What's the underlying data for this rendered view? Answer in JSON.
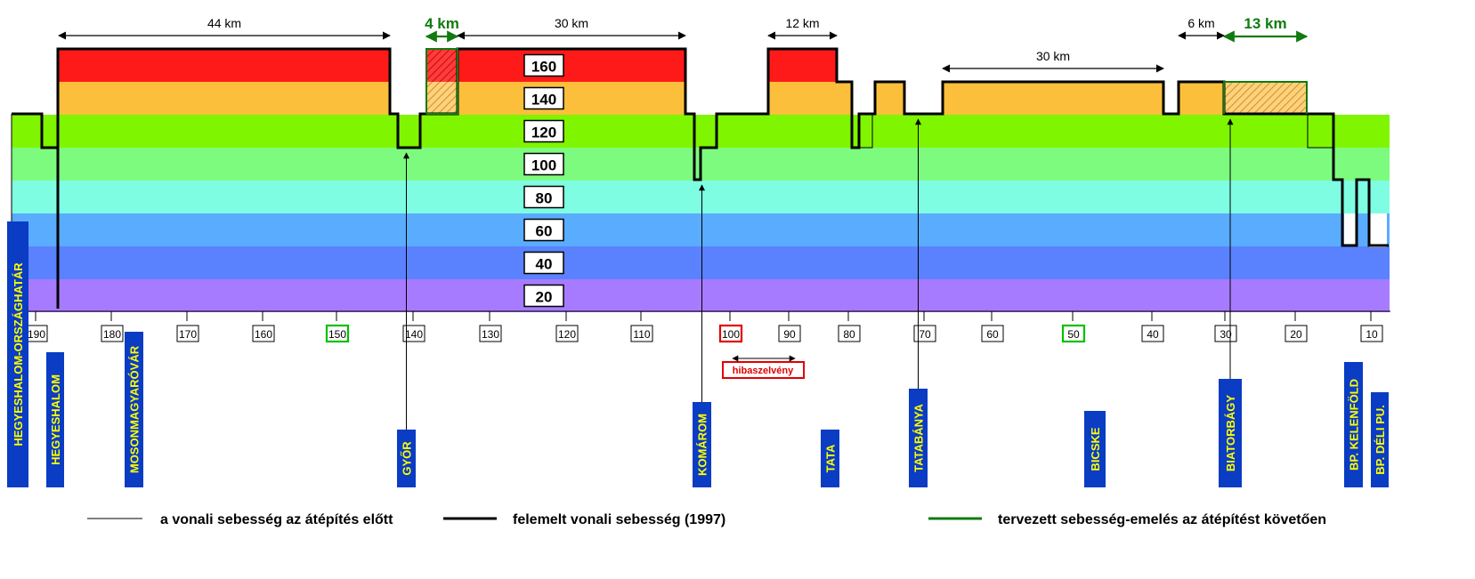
{
  "speed_bands": [
    {
      "label": "160",
      "color": "#ff1a1a"
    },
    {
      "label": "140",
      "color": "#fbbf3c"
    },
    {
      "label": "120",
      "color": "#7ff500"
    },
    {
      "label": "100",
      "color": "#7dfb7f"
    },
    {
      "label": "80",
      "color": "#7ffde3"
    },
    {
      "label": "60",
      "color": "#5aacff"
    },
    {
      "label": "40",
      "color": "#5a82ff"
    },
    {
      "label": "20",
      "color": "#a77bff"
    }
  ],
  "km_ticks": [
    "190",
    "180",
    "170",
    "160",
    "150",
    "140",
    "130",
    "120",
    "110",
    "100",
    "90",
    "80",
    "70",
    "60",
    "50",
    "40",
    "30",
    "20",
    "10"
  ],
  "tick_highlights": {
    "150": "green",
    "100": "red",
    "50": "green"
  },
  "error_note": "hibaszelvény",
  "dimensions": [
    {
      "label": "44 km",
      "planned": false
    },
    {
      "label": "4 km",
      "planned": true
    },
    {
      "label": "30 km",
      "planned": false
    },
    {
      "label": "12 km",
      "planned": false
    },
    {
      "label": "30 km",
      "planned": false
    },
    {
      "label": "6 km",
      "planned": false
    },
    {
      "label": "13 km",
      "planned": true
    }
  ],
  "stations": [
    {
      "name": "HEGYESHALOM-ORSZÁGHATÁR",
      "arrow": false
    },
    {
      "name": "HEGYESHALOM",
      "arrow": false
    },
    {
      "name": "MOSONMAGYARÓVÁR",
      "arrow": false
    },
    {
      "name": "GYŐR",
      "arrow": true
    },
    {
      "name": "KOMÁROM",
      "arrow": true
    },
    {
      "name": "TATA",
      "arrow": false
    },
    {
      "name": "TATABÁNYA",
      "arrow": true
    },
    {
      "name": "BICSKE",
      "arrow": false
    },
    {
      "name": "BIATORBÁGY",
      "arrow": true
    },
    {
      "name": "BP. KELENFÖLD",
      "arrow": false
    },
    {
      "name": "BP. DÉLI PU.",
      "arrow": false
    }
  ],
  "legend": {
    "before": "a vonali sebesség az átépítés előtt",
    "raised": "felemelt vonali sebesség (1997)",
    "planned": "tervezett sebesség-emelés az átépítést követően"
  },
  "colors": {
    "station_fill": "#0a3cc4",
    "station_text": "#ffff00",
    "planned": "#117a11",
    "error": "#e00000"
  }
}
